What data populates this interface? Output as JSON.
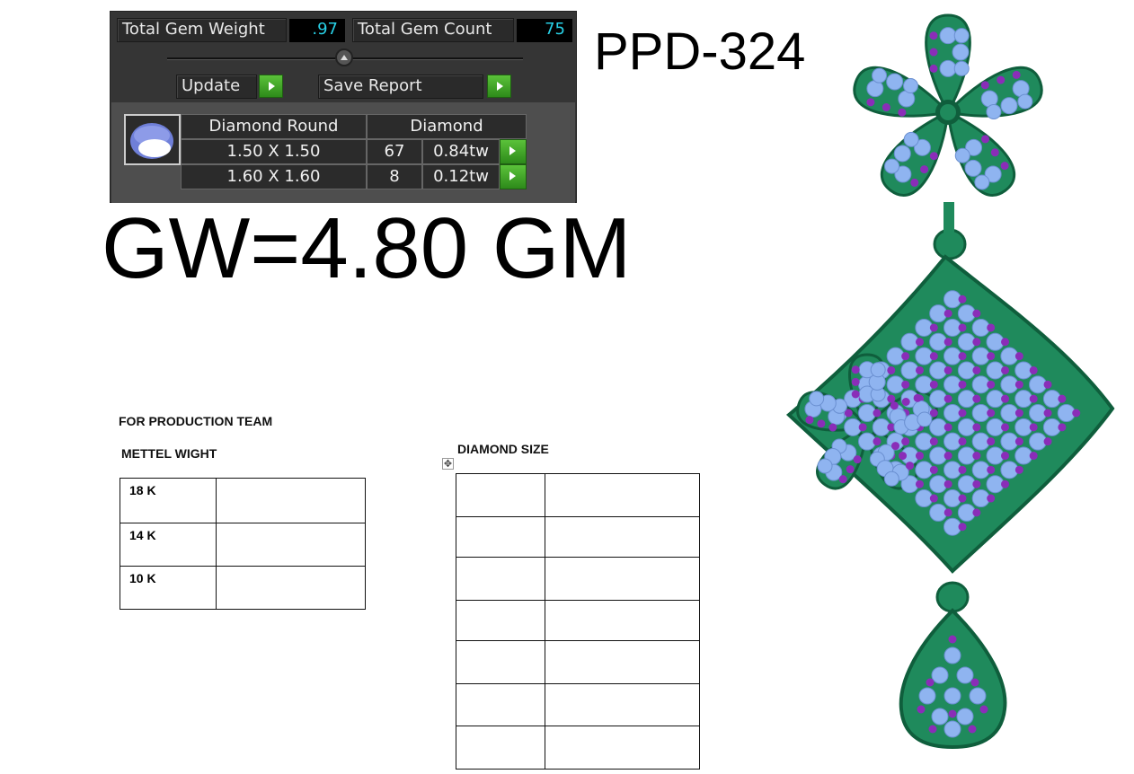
{
  "gem_panel": {
    "total_gem_weight_label": "Total Gem Weight",
    "total_gem_weight_value": ".97",
    "total_gem_count_label": "Total Gem Count",
    "total_gem_count_value": "75",
    "update_label": "Update",
    "save_report_label": "Save Report",
    "table": {
      "headers": [
        "Diamond Round",
        "Diamond"
      ],
      "rows": [
        {
          "size": "1.50 X 1.50",
          "count": "67",
          "weight": "0.84tw"
        },
        {
          "size": "1.60 X 1.60",
          "count": "8",
          "weight": "0.12tw"
        }
      ]
    },
    "value_color": "#28d0e6",
    "button_color": "#3aa124"
  },
  "design_code": "PPD-324",
  "gross_weight": "GW=4.80 GM",
  "production": {
    "title": "FOR PRODUCTION TEAM",
    "metal_weight_title": "METTEL WIGHT",
    "metal_rows": [
      "18 K",
      "14 K",
      "10 K"
    ],
    "diamond_size_title": "DIAMOND SIZE"
  },
  "jewelry": {
    "metal_color": "#1f8a5c",
    "stone_color": "#8fb4f0",
    "accent_stone_color": "#8a2db8"
  }
}
